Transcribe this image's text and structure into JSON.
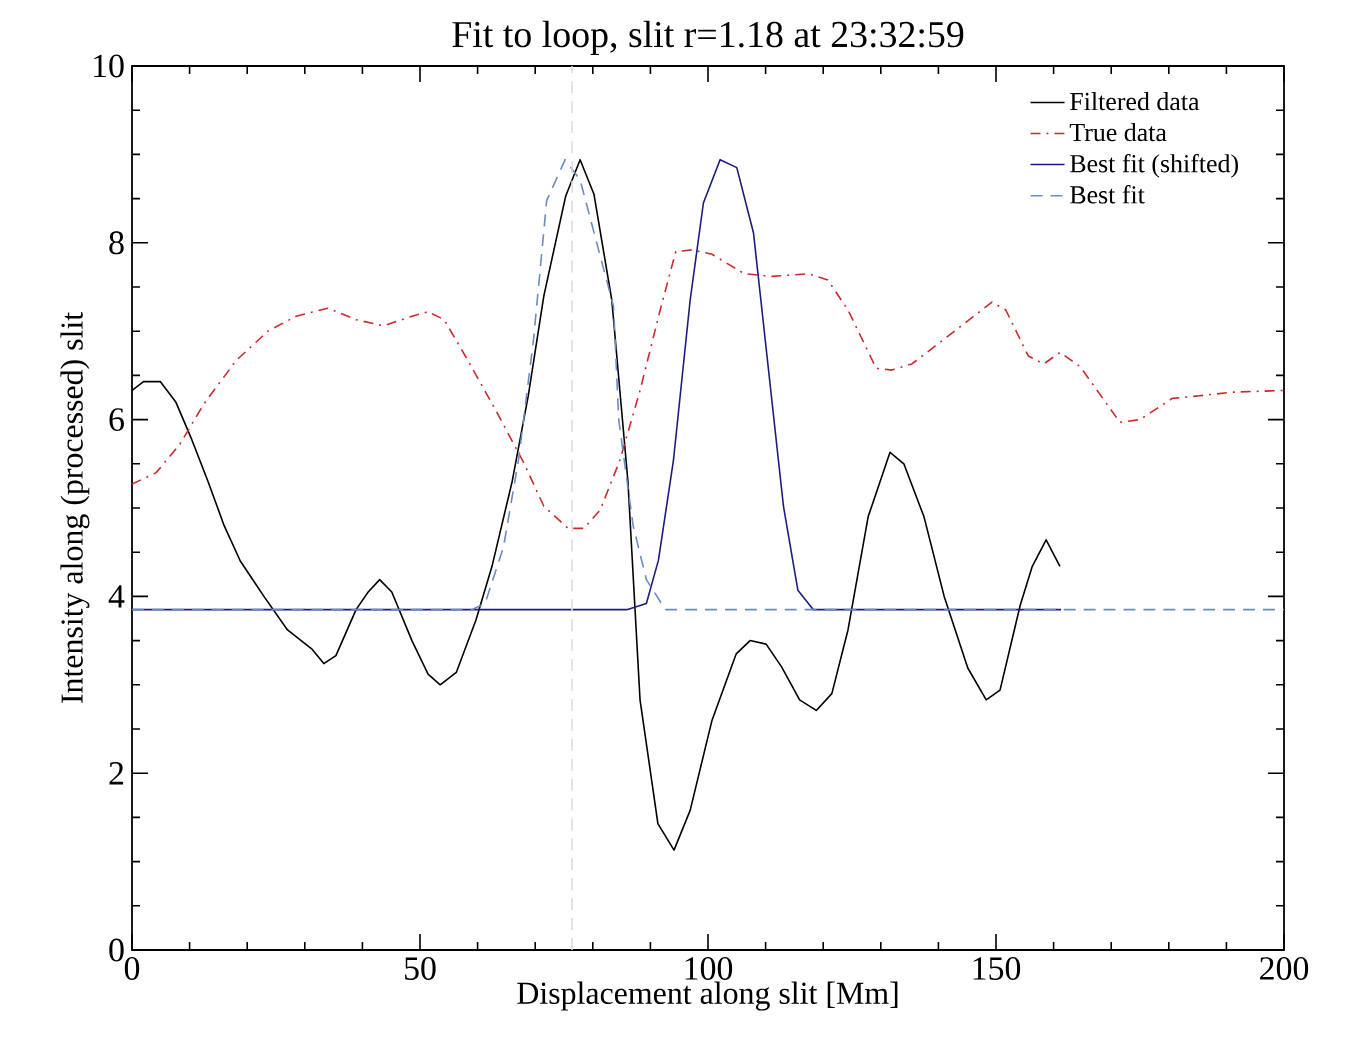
{
  "chart_data": {
    "type": "line",
    "title": "Fit to loop, slit r=1.18 at 23:32:59",
    "xlabel": "Displacement along slit [Mm]",
    "ylabel": "Intensity along (processed) slit",
    "xlim": [
      0,
      200
    ],
    "ylim": [
      0,
      10
    ],
    "xticks": [
      0,
      50,
      100,
      150,
      200
    ],
    "yticks": [
      0,
      2,
      4,
      6,
      8,
      10
    ],
    "grid": false,
    "legend": "top right",
    "marker": "none",
    "ref_lines": [
      {
        "axis": "x",
        "value": 76.4,
        "color": "#dddddd",
        "line_style": "dashed"
      }
    ],
    "series": [
      {
        "name": "Filtered data",
        "color": "#000000",
        "line_style": "solid",
        "x": [
          0,
          2,
          4.9,
          7.6,
          10.4,
          13.2,
          16,
          18.8,
          22.9,
          27,
          31.3,
          33.3,
          35.4,
          38.9,
          41,
          43,
          45.1,
          48.6,
          51.4,
          53.5,
          56.3,
          59.7,
          62.5,
          66,
          68.8,
          71.5,
          75.3,
          77.8,
          80.2,
          83.3,
          86.1,
          88.2,
          91.3,
          94.1,
          96.9,
          100.7,
          104.9,
          107.3,
          110.1,
          112.8,
          115.9,
          118.8,
          121.5,
          124.3,
          127.8,
          131.6,
          134,
          137.5,
          141,
          145.1,
          148.3,
          150.7,
          154.2,
          156.3,
          158.7,
          161.1
        ],
        "values": [
          6.33,
          6.43,
          6.43,
          6.2,
          5.77,
          5.3,
          4.8,
          4.4,
          4.0,
          3.62,
          3.4,
          3.24,
          3.33,
          3.85,
          4.05,
          4.19,
          4.05,
          3.5,
          3.12,
          3.0,
          3.14,
          3.73,
          4.34,
          5.3,
          6.27,
          7.4,
          8.53,
          8.94,
          8.55,
          7.35,
          5.3,
          2.83,
          1.43,
          1.13,
          1.58,
          2.6,
          3.35,
          3.5,
          3.46,
          3.2,
          2.83,
          2.71,
          2.9,
          3.62,
          4.9,
          5.63,
          5.5,
          4.9,
          4.0,
          3.19,
          2.83,
          2.94,
          3.9,
          4.34,
          4.64,
          4.34
        ]
      },
      {
        "name": "True data",
        "color": "#cc2a2a",
        "line_style": "dashdot",
        "x": [
          0,
          4.2,
          8.3,
          12.5,
          18.1,
          23.6,
          28.5,
          34,
          38.9,
          43.7,
          48.6,
          51.4,
          54.2,
          58.3,
          63.2,
          68.1,
          71.5,
          75.7,
          78.5,
          81.3,
          84.7,
          88.2,
          91.7,
          94.4,
          97.2,
          100.7,
          106.3,
          111.1,
          117.4,
          120.8,
          124.3,
          129.2,
          131.9,
          135.4,
          143,
          149.3,
          151.7,
          155.6,
          158.3,
          161.1,
          164.6,
          171.5,
          175,
          180.6,
          185.4,
          191,
          200
        ],
        "values": [
          5.27,
          5.4,
          5.72,
          6.18,
          6.67,
          7.0,
          7.17,
          7.26,
          7.13,
          7.06,
          7.17,
          7.22,
          7.13,
          6.67,
          6.1,
          5.5,
          5.02,
          4.77,
          4.77,
          4.98,
          5.54,
          6.33,
          7.24,
          7.9,
          7.92,
          7.87,
          7.65,
          7.62,
          7.65,
          7.58,
          7.24,
          6.58,
          6.56,
          6.63,
          7.01,
          7.33,
          7.24,
          6.72,
          6.63,
          6.76,
          6.6,
          5.97,
          6.0,
          6.24,
          6.27,
          6.31,
          6.33
        ]
      },
      {
        "name": "Best fit (shifted)",
        "color": "#1c1c80",
        "line_style": "solid",
        "x": [
          0,
          85.9,
          89.3,
          91.4,
          94,
          96.9,
          99.2,
          102.1,
          105,
          107.9,
          113.1,
          115.6,
          118.3,
          161.3
        ],
        "values": [
          3.85,
          3.85,
          3.92,
          4.41,
          5.54,
          7.35,
          8.45,
          8.94,
          8.85,
          8.11,
          5.02,
          4.07,
          3.85,
          3.85
        ]
      },
      {
        "name": "Best fit",
        "color": "#6a8cc0",
        "line_style": "dashed",
        "x": [
          0,
          59,
          61.3,
          64.5,
          67.1,
          69.7,
          72,
          75.2,
          77.8,
          83.6,
          84.5,
          87,
          89.3,
          92.6,
          200
        ],
        "values": [
          3.85,
          3.85,
          3.92,
          4.56,
          5.54,
          6.9,
          8.48,
          8.94,
          8.71,
          7.28,
          6.0,
          4.8,
          4.19,
          3.85,
          3.85
        ]
      }
    ]
  }
}
